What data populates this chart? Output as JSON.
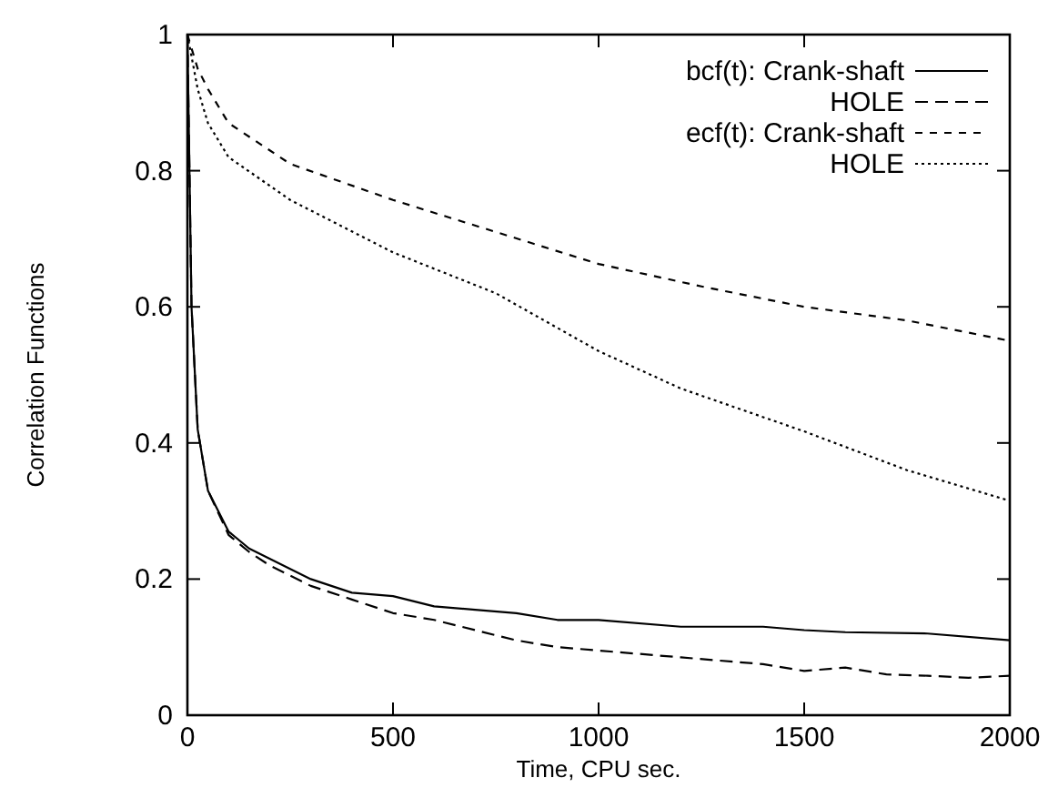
{
  "chart_data": {
    "type": "line",
    "xlabel": "Time, CPU sec.",
    "ylabel": "Correlation Functions",
    "xlim": [
      0,
      2000
    ],
    "ylim": [
      0,
      1
    ],
    "xticks": [
      0,
      500,
      1000,
      1500,
      2000
    ],
    "yticks": [
      0,
      0.2,
      0.4,
      0.6,
      0.8,
      1
    ],
    "legend": "top right",
    "grid": false,
    "marker": "none",
    "series": [
      {
        "name": "bcf(t): Crank-shaft",
        "color": "#000000",
        "line_style": "solid",
        "x": [
          0,
          10,
          25,
          50,
          100,
          150,
          200,
          300,
          400,
          500,
          600,
          700,
          800,
          900,
          1000,
          1200,
          1400,
          1500,
          1600,
          1800,
          2000
        ],
        "values": [
          1,
          0.6,
          0.42,
          0.33,
          0.27,
          0.245,
          0.23,
          0.2,
          0.18,
          0.175,
          0.16,
          0.155,
          0.15,
          0.14,
          0.14,
          0.13,
          0.13,
          0.125,
          0.122,
          0.12,
          0.11
        ]
      },
      {
        "name": "HOLE",
        "color": "#000000",
        "line_style": "dashed",
        "x": [
          0,
          10,
          25,
          50,
          100,
          150,
          200,
          300,
          400,
          500,
          600,
          700,
          800,
          900,
          1000,
          1200,
          1400,
          1500,
          1600,
          1700,
          1800,
          1900,
          2000
        ],
        "values": [
          1,
          0.6,
          0.42,
          0.33,
          0.265,
          0.24,
          0.22,
          0.19,
          0.17,
          0.15,
          0.14,
          0.125,
          0.11,
          0.1,
          0.095,
          0.085,
          0.075,
          0.065,
          0.07,
          0.06,
          0.058,
          0.055,
          0.058
        ]
      },
      {
        "name": "ecf(t): Crank-shaft",
        "color": "#000000",
        "line_style": "dashed",
        "x": [
          0,
          25,
          50,
          100,
          250,
          500,
          750,
          1000,
          1250,
          1500,
          1750,
          2000
        ],
        "values": [
          1,
          0.95,
          0.92,
          0.87,
          0.81,
          0.757,
          0.71,
          0.663,
          0.63,
          0.6,
          0.58,
          0.55
        ]
      },
      {
        "name": "HOLE",
        "color": "#000000",
        "line_style": "dotted",
        "x": [
          0,
          25,
          50,
          100,
          250,
          500,
          750,
          1000,
          1200,
          1500,
          1750,
          2000
        ],
        "values": [
          1,
          0.92,
          0.87,
          0.82,
          0.757,
          0.68,
          0.62,
          0.535,
          0.48,
          0.417,
          0.36,
          0.315
        ]
      }
    ]
  }
}
